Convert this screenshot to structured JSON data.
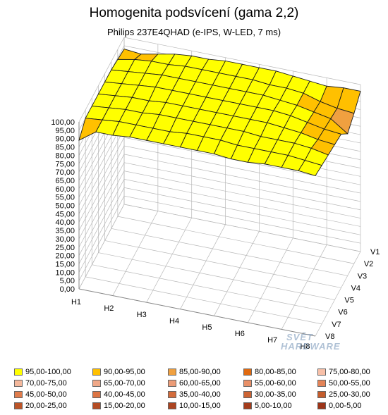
{
  "chart_data": {
    "type": "surface3d",
    "title": "Homogenita podsvícení (gama 2,2)",
    "subtitle": "Philips 237E4QHAD  (e-IPS, W-LED, 7 ms)",
    "z_ticks": [
      "0,00",
      "5,00",
      "10,00",
      "15,00",
      "20,00",
      "25,00",
      "30,00",
      "35,00",
      "40,00",
      "45,00",
      "50,00",
      "55,00",
      "60,00",
      "65,00",
      "70,00",
      "75,00",
      "80,00",
      "85,00",
      "90,00",
      "95,00",
      "100,00"
    ],
    "zlim": [
      0,
      100
    ],
    "h_labels": [
      "H1",
      "H2",
      "H3",
      "H4",
      "H5",
      "H6",
      "H7",
      "H8"
    ],
    "v_labels": [
      "V1",
      "V2",
      "V3",
      "V4",
      "V5",
      "V6",
      "V7",
      "V8"
    ],
    "grid_values": [
      [
        89,
        96,
        96,
        97,
        97,
        97,
        97,
        97,
        97,
        96,
        96,
        97,
        97,
        97,
        96
      ],
      [
        95,
        96,
        97,
        97,
        97,
        97,
        98,
        98,
        98,
        97,
        97,
        97,
        97,
        96,
        95
      ],
      [
        95,
        96,
        97,
        97,
        98,
        98,
        98,
        98,
        98,
        98,
        97,
        97,
        97,
        96,
        94
      ],
      [
        95,
        96,
        97,
        97,
        98,
        98,
        98,
        98,
        98,
        98,
        98,
        97,
        96,
        94,
        93
      ],
      [
        95,
        96,
        97,
        98,
        98,
        98,
        98,
        98,
        98,
        98,
        98,
        97,
        95,
        93,
        92
      ],
      [
        95,
        96,
        97,
        98,
        98,
        98,
        98,
        98,
        98,
        98,
        97,
        96,
        94,
        92,
        85
      ],
      [
        94,
        96,
        97,
        97,
        98,
        98,
        98,
        98,
        98,
        97,
        97,
        96,
        93,
        91,
        90
      ],
      [
        93,
        92,
        94,
        96,
        97,
        97,
        98,
        98,
        98,
        98,
        97,
        96,
        95,
        96,
        96
      ]
    ],
    "legend": [
      {
        "label": "95,00-100,00",
        "color": "#ffff00"
      },
      {
        "label": "90,00-95,00",
        "color": "#ffc000"
      },
      {
        "label": "85,00-90,00",
        "color": "#f0a040"
      },
      {
        "label": "80,00-85,00",
        "color": "#e06a10"
      },
      {
        "label": "75,00-80,00",
        "color": "#f8c0a8"
      },
      {
        "label": "70,00-75,00",
        "color": "#f4b89c"
      },
      {
        "label": "65,00-70,00",
        "color": "#f0a888"
      },
      {
        "label": "60,00-65,00",
        "color": "#ec9c78"
      },
      {
        "label": "55,00-60,00",
        "color": "#e89068"
      },
      {
        "label": "50,00-55,00",
        "color": "#e48458"
      },
      {
        "label": "45,00-50,00",
        "color": "#e07c4c"
      },
      {
        "label": "40,00-45,00",
        "color": "#dc7444"
      },
      {
        "label": "35,00-40,00",
        "color": "#d46c3c"
      },
      {
        "label": "30,00-35,00",
        "color": "#cc6434"
      },
      {
        "label": "25,00-30,00",
        "color": "#c45c2c"
      },
      {
        "label": "20,00-25,00",
        "color": "#bc5428"
      },
      {
        "label": "15,00-20,00",
        "color": "#b44c24"
      },
      {
        "label": "10,00-15,00",
        "color": "#ac4420"
      },
      {
        "label": "5,00-10,00",
        "color": "#a43c1c"
      },
      {
        "label": "0,00-5,00",
        "color": "#9c3418"
      }
    ]
  },
  "watermark": {
    "line1": "SVĚT",
    "line2": "HARDWARE"
  }
}
